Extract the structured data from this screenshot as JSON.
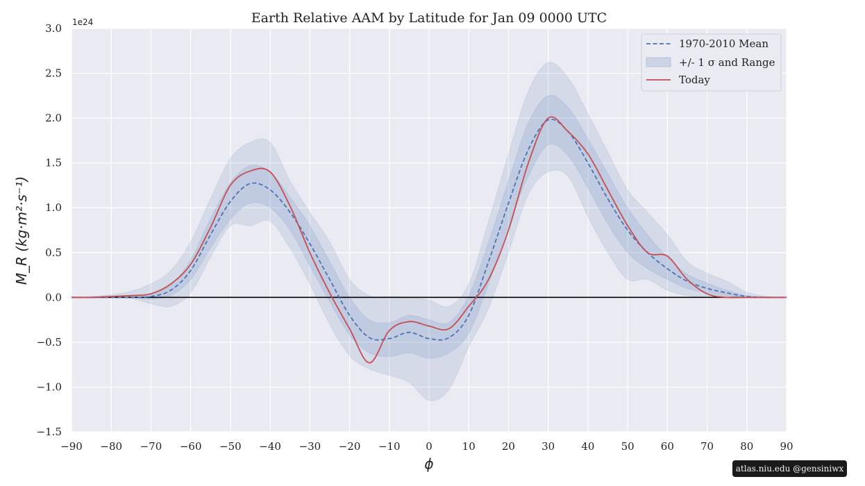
{
  "chart_data": {
    "type": "area",
    "title": "Earth Relative AAM by Latitude for Jan 09 0000 UTC",
    "xlabel": "ϕ",
    "ylabel": "M_R (kg·m²·s⁻¹)",
    "offset_label": "1e24",
    "xlim": [
      -90,
      90
    ],
    "ylim": [
      -1.5,
      3.0
    ],
    "x_ticks": [
      -90,
      -80,
      -70,
      -60,
      -50,
      -40,
      -30,
      -20,
      -10,
      0,
      10,
      20,
      30,
      40,
      50,
      60,
      70,
      80,
      90
    ],
    "x_tick_labels": [
      "−90",
      "−80",
      "−70",
      "−60",
      "−50",
      "−40",
      "−30",
      "−20",
      "−10",
      "0",
      "10",
      "20",
      "30",
      "40",
      "50",
      "60",
      "70",
      "80",
      "90"
    ],
    "y_ticks": [
      -1.5,
      -1.0,
      -0.5,
      0.0,
      0.5,
      1.0,
      1.5,
      2.0,
      2.5,
      3.0
    ],
    "y_tick_labels": [
      "−1.5",
      "−1.0",
      "−0.5",
      "0.0",
      "0.5",
      "1.0",
      "1.5",
      "2.0",
      "2.5",
      "3.0"
    ],
    "grid": true,
    "legend_position": "top-right",
    "colors": {
      "mean": "#4c72b0",
      "band": "#4c72b0",
      "today": "#c44e52",
      "background": "#eaeaf2",
      "grid": "#ffffff",
      "zero_line": "#000000"
    },
    "x": [
      -90,
      -85,
      -80,
      -75,
      -70,
      -65,
      -60,
      -55,
      -50,
      -45,
      -40,
      -35,
      -30,
      -25,
      -20,
      -15,
      -10,
      -5,
      0,
      5,
      10,
      15,
      20,
      25,
      30,
      35,
      40,
      45,
      50,
      55,
      60,
      65,
      70,
      75,
      80,
      85,
      90
    ],
    "series": [
      {
        "name": "1970-2010 Mean",
        "style": "dashed",
        "values": [
          0.0,
          0.0,
          0.0,
          0.0,
          0.01,
          0.08,
          0.3,
          0.7,
          1.07,
          1.27,
          1.2,
          0.95,
          0.6,
          0.2,
          -0.2,
          -0.45,
          -0.46,
          -0.39,
          -0.46,
          -0.45,
          -0.2,
          0.4,
          1.05,
          1.65,
          1.98,
          1.85,
          1.5,
          1.1,
          0.75,
          0.5,
          0.32,
          0.18,
          0.1,
          0.05,
          0.01,
          0.0,
          0.0
        ]
      },
      {
        "name": "+/- 1 σ and Range",
        "type": "band",
        "sigma_lower": [
          0.0,
          0.0,
          0.0,
          0.0,
          -0.02,
          0.02,
          0.2,
          0.55,
          0.87,
          1.05,
          1.0,
          0.75,
          0.35,
          -0.05,
          -0.42,
          -0.62,
          -0.66,
          -0.62,
          -0.68,
          -0.62,
          -0.4,
          0.15,
          0.8,
          1.35,
          1.7,
          1.58,
          1.22,
          0.82,
          0.5,
          0.32,
          0.2,
          0.1,
          0.05,
          0.02,
          0.0,
          0.0,
          0.0
        ],
        "sigma_upper": [
          0.0,
          0.0,
          0.01,
          0.02,
          0.04,
          0.14,
          0.42,
          0.88,
          1.28,
          1.47,
          1.4,
          1.12,
          0.8,
          0.4,
          0.0,
          -0.25,
          -0.28,
          -0.2,
          -0.25,
          -0.28,
          0.02,
          0.62,
          1.3,
          1.95,
          2.25,
          2.12,
          1.77,
          1.38,
          1.0,
          0.7,
          0.45,
          0.26,
          0.16,
          0.08,
          0.02,
          0.0,
          0.0
        ],
        "range_lower": [
          0.0,
          0.0,
          0.0,
          -0.01,
          -0.07,
          -0.1,
          0.05,
          0.45,
          0.8,
          0.8,
          0.85,
          0.55,
          0.15,
          -0.3,
          -0.65,
          -0.8,
          -0.87,
          -0.95,
          -1.15,
          -1.03,
          -0.55,
          -0.12,
          0.5,
          1.15,
          1.4,
          1.35,
          0.9,
          0.5,
          0.2,
          0.2,
          0.08,
          0.02,
          0.0,
          0.0,
          0.0,
          0.0,
          0.0
        ],
        "range_upper": [
          0.0,
          0.01,
          0.03,
          0.07,
          0.15,
          0.3,
          0.62,
          1.1,
          1.55,
          1.73,
          1.73,
          1.3,
          0.95,
          0.62,
          0.2,
          0.02,
          0.01,
          0.0,
          -0.03,
          -0.1,
          0.15,
          0.85,
          1.6,
          2.3,
          2.62,
          2.45,
          2.05,
          1.62,
          1.2,
          0.95,
          0.7,
          0.4,
          0.27,
          0.18,
          0.06,
          0.01,
          0.0
        ]
      },
      {
        "name": "Today",
        "style": "solid",
        "values": [
          0.0,
          0.0,
          0.01,
          0.02,
          0.04,
          0.15,
          0.37,
          0.78,
          1.25,
          1.41,
          1.4,
          1.02,
          0.5,
          0.05,
          -0.35,
          -0.73,
          -0.37,
          -0.27,
          -0.32,
          -0.35,
          -0.1,
          0.2,
          0.75,
          1.5,
          2.0,
          1.85,
          1.6,
          1.2,
          0.8,
          0.5,
          0.46,
          0.2,
          0.04,
          0.0,
          0.0,
          0.0,
          0.0
        ]
      }
    ]
  },
  "watermark": "atlas.niu.edu  @gensiniwx"
}
